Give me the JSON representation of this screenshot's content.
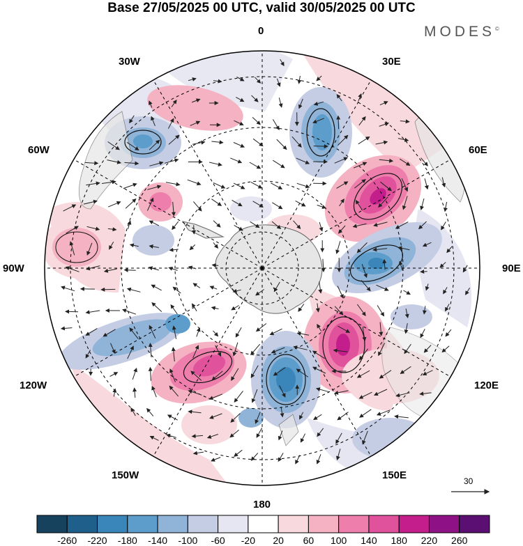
{
  "title": "Base 27/05/2025 00 UTC, valid 30/05/2025 00 UTC",
  "brand": "MODES",
  "brand_mark": "©",
  "lon_labels": {
    "top": "0",
    "e30": "30E",
    "e60": "60E",
    "e90": "90E",
    "e120": "120E",
    "e150": "150E",
    "bottom": "180",
    "w150": "150W",
    "w120": "120W",
    "w90": "90W",
    "w60": "60W",
    "w30": "30W"
  },
  "vector_scale": "30",
  "colorbar": {
    "labels": [
      "-260",
      "-220",
      "-180",
      "-140",
      "-100",
      "-60",
      "-20",
      "20",
      "60",
      "100",
      "140",
      "180",
      "220",
      "260"
    ],
    "colors": [
      "#16425e",
      "#1f5f8b",
      "#3a85b9",
      "#5c9dcb",
      "#90b4d8",
      "#c5cde5",
      "#e6e6f2",
      "#ffffff",
      "#f8d9dd",
      "#f4b2c3",
      "#ee7fac",
      "#e0529b",
      "#c41e8c",
      "#8f1186",
      "#5c0f72"
    ]
  },
  "colors": {
    "land": "#e6e6e6",
    "coast": "#666666",
    "grid": "#000000"
  }
}
